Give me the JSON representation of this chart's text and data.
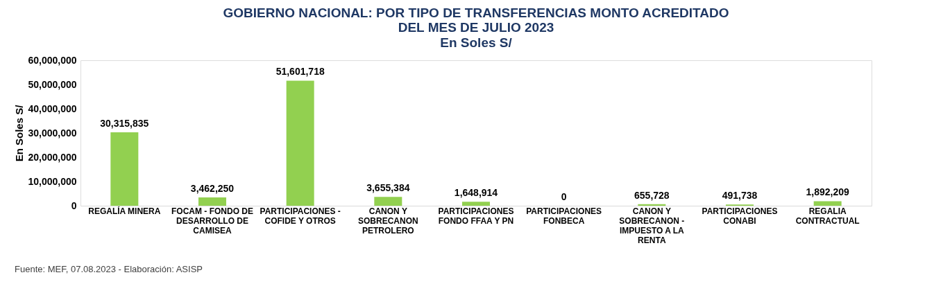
{
  "chart_data": {
    "type": "bar",
    "title": "GOBIERNO NACIONAL: POR TIPO DE TRANSFERENCIAS MONTO ACREDITADO DEL MES DE JULIO 2023",
    "subtitle": "En Soles S/",
    "ylabel": "En Soles S/",
    "categories": [
      "REGALÍA MINERA",
      "FOCAM - FONDO DE DESARROLLO DE CAMISEA",
      "PARTICIPACIONES - COFIDE Y OTROS",
      "CANON Y SOBRECANON PETROLERO",
      "PARTICIPACIONES FONDO FFAA Y PN",
      "PARTICIPACIONES FONBECA",
      "CANON Y SOBRECANON - IMPUESTO A LA RENTA",
      "PARTICIPACIONES CONABI",
      "REGALIA CONTRACTUAL"
    ],
    "values": [
      30315835,
      3462250,
      51601718,
      3655384,
      1648914,
      0,
      655728,
      491738,
      1892209
    ],
    "color": "#92d050",
    "ylim": [
      0,
      60000000
    ],
    "yticks": [
      0,
      {
        "value": 10000000,
        "label": "10,000,000"
      },
      {
        "value": 20000000,
        "label": "20,000,000"
      },
      {
        "value": 30000000,
        "label": "30,000,000"
      },
      {
        "value": 40000000,
        "label": "40,000,000"
      },
      {
        "value": 50000000,
        "label": "50,000,000"
      },
      {
        "value": 60000000,
        "label": "60,000,000"
      }
    ],
    "value_labels": [
      "30,315,835",
      "3,462,250",
      "51,601,718",
      "3,655,384",
      "1,648,914",
      "0",
      "655,728",
      "491,738",
      "1,892,209"
    ],
    "grid": false,
    "annotations": [
      "Fuente: MEF, 07.08.2023 - Elaboración: ASISP"
    ]
  }
}
